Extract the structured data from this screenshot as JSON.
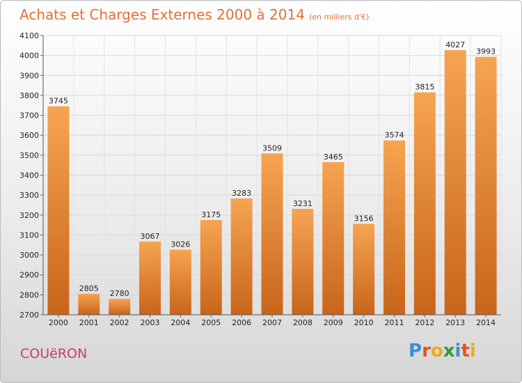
{
  "header": {
    "title": "Achats et Charges Externes 2000 à 2014",
    "subtitle": "(en milliers d'€)"
  },
  "footer": {
    "city": "COUëRON",
    "logo_letters": [
      "P",
      "r",
      "o",
      "x",
      "i",
      "t",
      "i"
    ],
    "logo_colors": [
      "#3b8fd4",
      "#e0541c",
      "#f0a81c",
      "#2e9f3a",
      "#3b8fd4",
      "#e0541c",
      "#f0a81c"
    ]
  },
  "chart_data": {
    "type": "bar",
    "title": "Achats et Charges Externes 2000 à 2014",
    "subtitle": "(en milliers d'€)",
    "categories": [
      "2000",
      "2001",
      "2002",
      "2003",
      "2004",
      "2005",
      "2006",
      "2007",
      "2008",
      "2009",
      "2010",
      "2011",
      "2012",
      "2013",
      "2014"
    ],
    "values": [
      3745,
      2805,
      2780,
      3067,
      3026,
      3175,
      3283,
      3509,
      3231,
      3465,
      3156,
      3574,
      3815,
      4027,
      3993
    ],
    "ylim": [
      2700,
      4100
    ],
    "yticks": [
      2700,
      2800,
      2900,
      3000,
      3100,
      3200,
      3300,
      3400,
      3500,
      3600,
      3700,
      3800,
      3900,
      4000,
      4100
    ],
    "grid": true,
    "bar_color_top": "#f6a452",
    "bar_color_bottom": "#c8651a"
  }
}
